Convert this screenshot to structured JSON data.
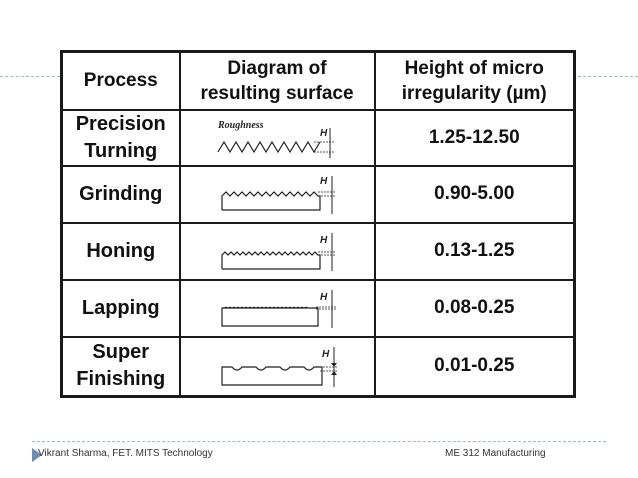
{
  "table": {
    "headers": {
      "process": "Process",
      "diagram": "Diagram of resulting surface",
      "diagram_line1": "Diagram of",
      "diagram_line2": "resulting surface",
      "height": "Height of micro irregularity (µm)",
      "height_line1": "Height of micro",
      "height_line2": "irregularity (µm)"
    },
    "rows": [
      {
        "process_line1": "Precision",
        "process_line2": "Turning",
        "diagram_label": "Roughness",
        "diagram_marker": "H",
        "value": "1.25-12.50",
        "icon": "roughness-sawtooth-icon"
      },
      {
        "process_line1": "Grinding",
        "process_line2": "",
        "diagram_marker": "H",
        "value": "0.90-5.00",
        "icon": "fine-sawtooth-surface-icon"
      },
      {
        "process_line1": "Honing",
        "process_line2": "",
        "diagram_marker": "H",
        "value": "0.13-1.25",
        "icon": "very-fine-sawtooth-surface-icon"
      },
      {
        "process_line1": "Lapping",
        "process_line2": "",
        "diagram_marker": "H",
        "value": "0.08-0.25",
        "icon": "flat-lapped-surface-icon"
      },
      {
        "process_line1": "Super",
        "process_line2": "Finishing",
        "diagram_marker": "H",
        "value": "0.01-0.25",
        "icon": "scalloped-superfinished-surface-icon"
      }
    ]
  },
  "footer": {
    "left": "Vikrant Sharma, FET. MITS Technology",
    "right": "ME 312 Manufacturing"
  }
}
